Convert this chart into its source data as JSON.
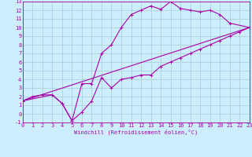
{
  "bg_color": "#cceeff",
  "grid_color": "#aacccc",
  "line_color": "#aa00aa",
  "xlim": [
    0,
    23
  ],
  "ylim": [
    -1,
    13
  ],
  "xlabel": "Windchill (Refroidissement éolien,°C)",
  "xticks": [
    0,
    1,
    2,
    3,
    4,
    5,
    6,
    7,
    8,
    9,
    10,
    11,
    12,
    13,
    14,
    15,
    16,
    17,
    18,
    19,
    20,
    21,
    22,
    23
  ],
  "yticks": [
    -1,
    0,
    1,
    2,
    3,
    4,
    5,
    6,
    7,
    8,
    9,
    10,
    11,
    12,
    13
  ],
  "curve1_x": [
    0,
    1,
    2,
    3,
    4,
    5,
    6,
    7,
    8,
    9,
    10,
    11,
    12,
    13,
    14,
    15,
    16,
    17,
    18,
    19,
    20,
    21,
    23
  ],
  "curve1_y": [
    1.5,
    2.0,
    2.2,
    2.2,
    1.2,
    -0.8,
    3.5,
    3.5,
    7.0,
    8.0,
    10.0,
    11.5,
    12.0,
    12.5,
    12.1,
    13.0,
    12.2,
    12.0,
    11.8,
    12.0,
    11.5,
    10.5,
    10.0
  ],
  "curve2_x": [
    0,
    3,
    4,
    5,
    6,
    7,
    8,
    9,
    10,
    11,
    12,
    13,
    14,
    15,
    16,
    17,
    18,
    19,
    20,
    21,
    22,
    23
  ],
  "curve2_y": [
    1.5,
    2.2,
    1.2,
    -0.8,
    0.2,
    1.5,
    4.2,
    3.0,
    4.0,
    4.2,
    4.5,
    4.5,
    5.5,
    6.0,
    6.5,
    7.0,
    7.5,
    8.0,
    8.5,
    9.0,
    9.5,
    10.0
  ],
  "curve3_x": [
    0,
    23
  ],
  "curve3_y": [
    1.5,
    10.0
  ],
  "tick_fontsize": 5,
  "xlabel_fontsize": 5,
  "lw": 0.8,
  "ms": 2.5
}
